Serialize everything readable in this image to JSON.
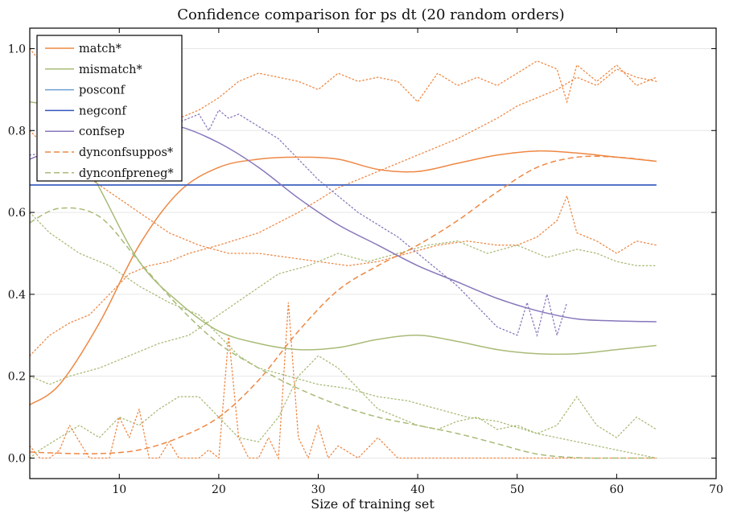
{
  "chart_data": {
    "type": "line",
    "title": "Confidence comparison for ps dt (20 random orders)",
    "xlabel": "Size of training set",
    "ylabel": "",
    "xlim": [
      1,
      70
    ],
    "ylim": [
      -0.05,
      1.05
    ],
    "xticks": [
      10,
      20,
      30,
      40,
      50,
      60,
      70
    ],
    "yticks": [
      0.0,
      0.2,
      0.4,
      0.6,
      0.8,
      1.0
    ],
    "xtick_labels": [
      "10",
      "20",
      "30",
      "40",
      "50",
      "60",
      "70"
    ],
    "ytick_labels": [
      "0.0",
      "0.2",
      "0.4",
      "0.6",
      "0.8",
      "1.0"
    ],
    "grid": "horizontal",
    "legend_position": "top-left",
    "x": [
      1,
      4,
      8,
      12,
      16,
      20,
      24,
      28,
      32,
      36,
      40,
      44,
      48,
      52,
      56,
      60,
      64
    ],
    "series": [
      {
        "name": "match*",
        "style": "solid",
        "color": "#ee8844",
        "values": [
          0.13,
          0.18,
          0.33,
          0.52,
          0.65,
          0.71,
          0.73,
          0.735,
          0.73,
          0.705,
          0.7,
          0.72,
          0.74,
          0.75,
          0.745,
          0.735,
          0.725
        ]
      },
      {
        "name": "mismatch*",
        "style": "solid",
        "color": "#a8bb77",
        "values": [
          0.87,
          0.84,
          0.66,
          0.48,
          0.38,
          0.31,
          0.28,
          0.265,
          0.27,
          0.29,
          0.3,
          0.285,
          0.265,
          0.255,
          0.255,
          0.265,
          0.275
        ]
      },
      {
        "name": "posconf",
        "style": "solid",
        "color": "#6f9fd0",
        "values": [
          0.667,
          0.667,
          0.667,
          0.667,
          0.667,
          0.667,
          0.667,
          0.667,
          0.667,
          0.667,
          0.667,
          0.667,
          0.667,
          0.667,
          0.667,
          0.667,
          0.667
        ]
      },
      {
        "name": "negconf",
        "style": "solid",
        "color": "#3355bb",
        "values": [
          0.667,
          0.667,
          0.667,
          0.667,
          0.667,
          0.667,
          0.667,
          0.667,
          0.667,
          0.667,
          0.667,
          0.667,
          0.667,
          0.667,
          0.667,
          0.667,
          0.667
        ]
      },
      {
        "name": "confsep",
        "style": "solid",
        "color": "#8877bb",
        "values": [
          0.73,
          0.76,
          0.8,
          0.82,
          0.81,
          0.77,
          0.71,
          0.635,
          0.57,
          0.52,
          0.47,
          0.43,
          0.39,
          0.36,
          0.34,
          0.335,
          0.333
        ]
      },
      {
        "name": "dynconfsuppos*",
        "style": "dashed",
        "color": "#ee8844",
        "values": [
          0.015,
          0.012,
          0.011,
          0.02,
          0.05,
          0.1,
          0.19,
          0.31,
          0.41,
          0.47,
          0.52,
          0.58,
          0.65,
          0.71,
          0.735,
          0.735,
          0.725
        ]
      },
      {
        "name": "dynconfpreneg*",
        "style": "dashed",
        "color": "#a8bb77",
        "values": [
          0.575,
          0.61,
          0.59,
          0.48,
          0.37,
          0.28,
          0.22,
          0.17,
          0.13,
          0.1,
          0.08,
          0.06,
          0.035,
          0.01,
          0.001,
          0.0,
          0.0
        ]
      }
    ],
    "dotted_traces": [
      {
        "color": "#ee8844",
        "x": [
          1,
          2,
          3,
          4,
          5,
          6,
          8,
          10,
          12,
          14,
          16,
          18,
          20,
          22,
          24,
          26,
          28,
          30,
          32,
          34,
          36,
          38,
          40,
          42,
          44,
          46,
          48,
          50,
          52,
          54,
          55,
          56,
          58,
          60,
          62,
          64
        ],
        "values": [
          1.0,
          0.97,
          0.92,
          0.83,
          0.85,
          0.8,
          0.78,
          0.8,
          0.82,
          0.82,
          0.83,
          0.85,
          0.88,
          0.92,
          0.94,
          0.93,
          0.92,
          0.9,
          0.94,
          0.92,
          0.93,
          0.92,
          0.87,
          0.94,
          0.91,
          0.93,
          0.91,
          0.94,
          0.97,
          0.95,
          0.87,
          0.96,
          0.92,
          0.96,
          0.91,
          0.93
        ]
      },
      {
        "color": "#ee8844",
        "x": [
          1,
          3,
          5,
          7,
          9,
          11,
          13,
          15,
          17,
          20,
          24,
          28,
          32,
          36,
          40,
          44,
          48,
          50,
          52,
          54,
          56,
          58,
          60,
          62,
          64
        ],
        "values": [
          0.25,
          0.3,
          0.33,
          0.35,
          0.4,
          0.45,
          0.47,
          0.48,
          0.5,
          0.52,
          0.55,
          0.6,
          0.66,
          0.7,
          0.74,
          0.78,
          0.83,
          0.86,
          0.88,
          0.9,
          0.93,
          0.91,
          0.95,
          0.93,
          0.92
        ]
      },
      {
        "color": "#ee8844",
        "x": [
          1,
          3,
          6,
          9,
          12,
          15,
          18,
          21,
          24,
          27,
          30,
          33,
          36,
          39,
          42,
          45,
          48,
          50,
          52,
          54,
          55,
          56,
          58,
          60,
          62,
          64
        ],
        "values": [
          0.8,
          0.75,
          0.7,
          0.65,
          0.6,
          0.55,
          0.52,
          0.5,
          0.5,
          0.49,
          0.48,
          0.47,
          0.48,
          0.5,
          0.52,
          0.53,
          0.52,
          0.52,
          0.54,
          0.58,
          0.64,
          0.55,
          0.53,
          0.5,
          0.53,
          0.52
        ]
      },
      {
        "color": "#a8bb77",
        "x": [
          1,
          3,
          6,
          9,
          12,
          15,
          18,
          20,
          22,
          24,
          27,
          30,
          33,
          36,
          39,
          42,
          45,
          48,
          52,
          56,
          60,
          62,
          64
        ],
        "values": [
          0.6,
          0.55,
          0.5,
          0.47,
          0.42,
          0.38,
          0.35,
          0.3,
          0.25,
          0.22,
          0.2,
          0.18,
          0.17,
          0.15,
          0.14,
          0.12,
          0.1,
          0.09,
          0.06,
          0.04,
          0.02,
          0.01,
          0.0
        ]
      },
      {
        "color": "#a8bb77",
        "x": [
          1,
          3,
          5,
          8,
          11,
          14,
          17,
          20,
          23,
          26,
          29,
          32,
          35,
          38,
          41,
          44,
          47,
          50,
          53,
          56,
          58,
          60,
          62,
          64
        ],
        "values": [
          0.2,
          0.18,
          0.2,
          0.22,
          0.25,
          0.28,
          0.3,
          0.35,
          0.4,
          0.45,
          0.47,
          0.5,
          0.48,
          0.5,
          0.52,
          0.53,
          0.5,
          0.52,
          0.49,
          0.51,
          0.5,
          0.48,
          0.47,
          0.47
        ]
      },
      {
        "color": "#a8bb77",
        "x": [
          1,
          2,
          4,
          6,
          8,
          10,
          12,
          14,
          16,
          18,
          20,
          22,
          24,
          26,
          28,
          30,
          32,
          34,
          36,
          38,
          40,
          42,
          44,
          46,
          48,
          50,
          52,
          54,
          56,
          58,
          60,
          62,
          64
        ],
        "values": [
          0.0,
          0.02,
          0.05,
          0.08,
          0.05,
          0.1,
          0.08,
          0.12,
          0.15,
          0.15,
          0.1,
          0.05,
          0.04,
          0.1,
          0.2,
          0.25,
          0.22,
          0.17,
          0.12,
          0.1,
          0.08,
          0.07,
          0.09,
          0.1,
          0.07,
          0.08,
          0.06,
          0.08,
          0.15,
          0.08,
          0.05,
          0.1,
          0.07
        ]
      },
      {
        "color": "#ee8844",
        "x": [
          1,
          2,
          3,
          4,
          5,
          7,
          9,
          10,
          11,
          12,
          13,
          14,
          15,
          16,
          18,
          19,
          20,
          21,
          22,
          23,
          24,
          25,
          26,
          27,
          28,
          29,
          30,
          31,
          32,
          34,
          36,
          38,
          40,
          44,
          48,
          52,
          56,
          60,
          64
        ],
        "values": [
          0.03,
          0.0,
          0.0,
          0.02,
          0.08,
          0.0,
          0.0,
          0.1,
          0.05,
          0.12,
          0.0,
          0.0,
          0.04,
          0.0,
          0.0,
          0.02,
          0.0,
          0.3,
          0.05,
          0.0,
          0.0,
          0.05,
          0.0,
          0.38,
          0.05,
          0.0,
          0.08,
          0.0,
          0.03,
          0.0,
          0.05,
          0.0,
          0.0,
          0.0,
          0.0,
          0.0,
          0.0,
          0.0,
          0.0
        ]
      },
      {
        "color": "#8877bb",
        "x": [
          1,
          4,
          8,
          12,
          16,
          18,
          19,
          20,
          21,
          22,
          24,
          26,
          28,
          30,
          32,
          34,
          36,
          38,
          40,
          42,
          44,
          46,
          48,
          50,
          51,
          52,
          53,
          54,
          55
        ],
        "values": [
          0.74,
          0.75,
          0.78,
          0.8,
          0.82,
          0.84,
          0.8,
          0.85,
          0.83,
          0.84,
          0.81,
          0.78,
          0.73,
          0.68,
          0.64,
          0.6,
          0.57,
          0.54,
          0.5,
          0.46,
          0.42,
          0.37,
          0.32,
          0.3,
          0.38,
          0.3,
          0.4,
          0.3,
          0.38
        ]
      }
    ]
  }
}
